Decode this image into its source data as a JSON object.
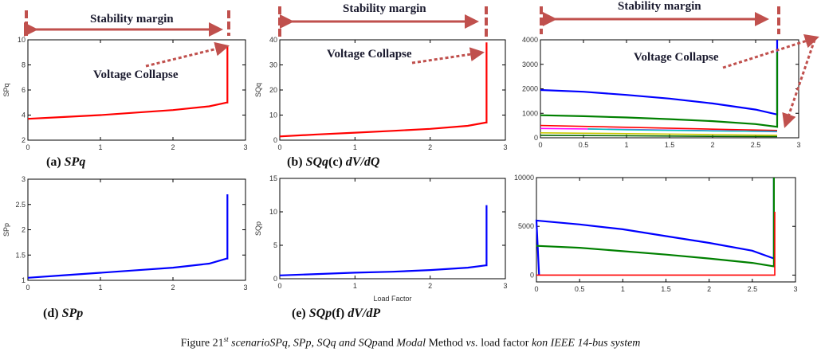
{
  "annotations": {
    "stability_margin": "Stability margin",
    "voltage_collapse": "Voltage Collapse",
    "arrow_color": "#c0504d"
  },
  "panels": {
    "a": {
      "prefix": "(a) ",
      "name": "SPq"
    },
    "b": {
      "prefix": "(b) ",
      "name": "SQq",
      "mid": "(c) ",
      "name2": "dV/dQ"
    },
    "d": {
      "prefix": "(d) ",
      "name": "SPp"
    },
    "e": {
      "prefix": "(e) ",
      "name": "SQp",
      "mid": "(f) ",
      "name2": "dV/dP"
    }
  },
  "caption": {
    "s1": "Figure 2",
    "s2": "1",
    "sup": "st",
    "s3": " scenarioSPq, SPp, SQq and SQp",
    "s4": "and ",
    "s5": "Modal",
    "s6": " Method ",
    "s7": "vs.",
    "s8": " load factor ",
    "s9": "kon IEEE 14-bus system"
  },
  "chart_data": [
    {
      "id": "a",
      "type": "line",
      "ylabel": "SPq",
      "xlabel": "",
      "xlim": [
        0,
        3
      ],
      "ylim": [
        2,
        10
      ],
      "xticks": [
        "0",
        "1",
        "2",
        "3"
      ],
      "yticks": [
        "2",
        "4",
        "6",
        "8",
        "10"
      ],
      "grid": false,
      "series": [
        {
          "color": "#ff0000",
          "x": [
            0,
            0.5,
            1,
            1.5,
            2,
            2.5,
            2.74,
            2.75,
            2.75
          ],
          "y": [
            3.7,
            3.85,
            4.0,
            4.2,
            4.4,
            4.7,
            5.0,
            5.0,
            9.5
          ]
        }
      ]
    },
    {
      "id": "b",
      "type": "line",
      "ylabel": "SQq",
      "xlabel": "",
      "xlim": [
        0,
        3
      ],
      "ylim": [
        0,
        40
      ],
      "xticks": [
        "0",
        "1",
        "2",
        "3"
      ],
      "yticks": [
        "0",
        "10",
        "20",
        "30",
        "40"
      ],
      "grid": false,
      "series": [
        {
          "color": "#ff0000",
          "x": [
            0,
            0.5,
            1,
            1.5,
            2,
            2.5,
            2.74,
            2.75,
            2.75
          ],
          "y": [
            1.5,
            2.3,
            3,
            3.7,
            4.5,
            5.7,
            7,
            7,
            39
          ]
        }
      ]
    },
    {
      "id": "c",
      "type": "line",
      "ylabel": "",
      "xlabel": "",
      "xlim": [
        0,
        3
      ],
      "ylim": [
        0,
        4000
      ],
      "xticks": [
        "0",
        "0.5",
        "1",
        "1.5",
        "2",
        "2.5",
        "3"
      ],
      "yticks": [
        "0",
        "1000",
        "2000",
        "3000",
        "4000"
      ],
      "grid": false,
      "series": [
        {
          "color": "#0000ff",
          "x": [
            0,
            0.5,
            1,
            1.5,
            2,
            2.5,
            2.75,
            2.75
          ],
          "y": [
            1950,
            1880,
            1750,
            1600,
            1400,
            1150,
            950,
            4000
          ]
        },
        {
          "color": "#008000",
          "x": [
            0,
            0.5,
            1,
            1.5,
            2,
            2.5,
            2.75,
            2.75
          ],
          "y": [
            920,
            880,
            830,
            760,
            680,
            560,
            450,
            3500
          ]
        },
        {
          "color": "#ff0000",
          "x": [
            0,
            1,
            2,
            2.75
          ],
          "y": [
            500,
            430,
            350,
            300
          ]
        },
        {
          "color": "#ff00ff",
          "x": [
            0,
            1,
            2,
            2.75
          ],
          "y": [
            380,
            340,
            290,
            250
          ]
        },
        {
          "color": "#00bfbf",
          "x": [
            0.55,
            1,
            2,
            2.75
          ],
          "y": [
            360,
            330,
            280,
            260
          ]
        },
        {
          "color": "#c8c800",
          "x": [
            0,
            1,
            2,
            2.75
          ],
          "y": [
            200,
            170,
            130,
            100
          ]
        },
        {
          "color": "#006400",
          "x": [
            0,
            1,
            2,
            2.75
          ],
          "y": [
            100,
            80,
            60,
            50
          ]
        }
      ]
    },
    {
      "id": "d",
      "type": "line",
      "ylabel": "SPp",
      "xlabel": "",
      "xlim": [
        0,
        3
      ],
      "ylim": [
        1,
        3
      ],
      "xticks": [
        "0",
        "1",
        "2",
        "3"
      ],
      "yticks": [
        "1",
        "1.5",
        "2",
        "2.5",
        "3"
      ],
      "grid": false,
      "series": [
        {
          "color": "#0000ff",
          "x": [
            0,
            0.5,
            1,
            1.5,
            2,
            2.5,
            2.74,
            2.75,
            2.75
          ],
          "y": [
            1.05,
            1.1,
            1.15,
            1.2,
            1.25,
            1.33,
            1.43,
            1.43,
            2.7
          ]
        }
      ]
    },
    {
      "id": "e",
      "type": "line",
      "ylabel": "SQp",
      "xlabel": "Load Factor",
      "xlim": [
        0,
        3
      ],
      "ylim": [
        0,
        15
      ],
      "xticks": [
        "0",
        "1",
        "2",
        "3"
      ],
      "yticks": [
        "0",
        "5",
        "10",
        "15"
      ],
      "grid": false,
      "series": [
        {
          "color": "#0000ff",
          "x": [
            0,
            0.5,
            1,
            1.5,
            2,
            2.5,
            2.74,
            2.75,
            2.75
          ],
          "y": [
            0.5,
            0.7,
            0.9,
            1.05,
            1.3,
            1.65,
            2,
            2,
            11
          ]
        }
      ]
    },
    {
      "id": "f",
      "type": "line",
      "ylabel": "",
      "xlabel": "",
      "xlim": [
        0,
        3
      ],
      "ylim": [
        -700,
        10000
      ],
      "xticks": [
        "0",
        "0.5",
        "1",
        "1.5",
        "2",
        "2.5",
        "3"
      ],
      "yticks": [
        "0",
        "5000",
        "10000"
      ],
      "grid": false,
      "series": [
        {
          "color": "#0000ff",
          "x": [
            0.03,
            0,
            0.5,
            1,
            1.5,
            2,
            2.5,
            2.75,
            2.75
          ],
          "y": [
            0,
            5600,
            5200,
            4700,
            4000,
            3300,
            2500,
            1700,
            10000
          ]
        },
        {
          "color": "#008000",
          "x": [
            0,
            0.5,
            1,
            1.5,
            2,
            2.5,
            2.75,
            2.75
          ],
          "y": [
            3000,
            2800,
            2450,
            2100,
            1700,
            1250,
            900,
            10000
          ]
        },
        {
          "color": "#ff0000",
          "x": [
            0,
            2.76,
            2.76
          ],
          "y": [
            0,
            0,
            6500
          ]
        }
      ]
    }
  ]
}
